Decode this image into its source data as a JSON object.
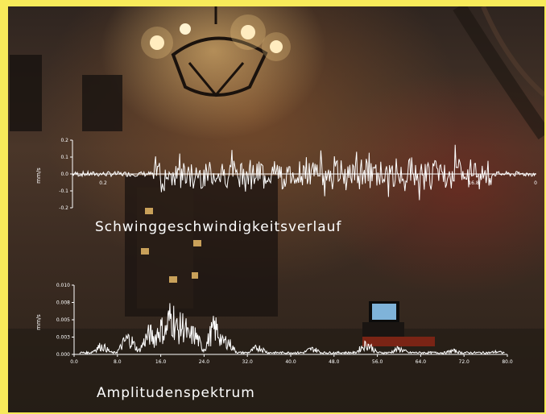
{
  "chart_data": [
    {
      "type": "line",
      "title": "Schwinggeschwindigkeitsverlauf",
      "ylabel": "mm/s",
      "yticks": [
        "0.2",
        "0.1",
        "0.0",
        "-0.1",
        "-0.2"
      ],
      "ylim": [
        -0.2,
        0.2
      ],
      "xticks": [
        "0.2",
        "16.8",
        "0"
      ],
      "grid": false,
      "color": "#ffffff",
      "peak_amplitude": 0.18
    },
    {
      "type": "line",
      "title": "Amplitudenspektrum",
      "ylabel": "mm/s",
      "yticks": [
        "0.010",
        "0.008",
        "0.005",
        "0.003",
        "0.000"
      ],
      "ylim": [
        0,
        0.01
      ],
      "xticks": [
        "0.0",
        "8.0",
        "16.0",
        "24.0",
        "32.0",
        "40.0",
        "48.0",
        "56.0",
        "64.0",
        "72.0",
        "80.0"
      ],
      "xlim": [
        0,
        80
      ],
      "grid": false,
      "color": "#ffffff",
      "peaks": [
        {
          "x": 5,
          "y": 0.0018
        },
        {
          "x": 10,
          "y": 0.0035
        },
        {
          "x": 14,
          "y": 0.0045
        },
        {
          "x": 16,
          "y": 0.0058
        },
        {
          "x": 18,
          "y": 0.0085
        },
        {
          "x": 20,
          "y": 0.0065
        },
        {
          "x": 22,
          "y": 0.0045
        },
        {
          "x": 26,
          "y": 0.0058
        },
        {
          "x": 28,
          "y": 0.003
        },
        {
          "x": 34,
          "y": 0.0015
        },
        {
          "x": 44,
          "y": 0.0012
        },
        {
          "x": 54,
          "y": 0.0022
        },
        {
          "x": 60,
          "y": 0.0012
        },
        {
          "x": 70,
          "y": 0.0008
        },
        {
          "x": 78,
          "y": 0.0006
        }
      ]
    }
  ]
}
